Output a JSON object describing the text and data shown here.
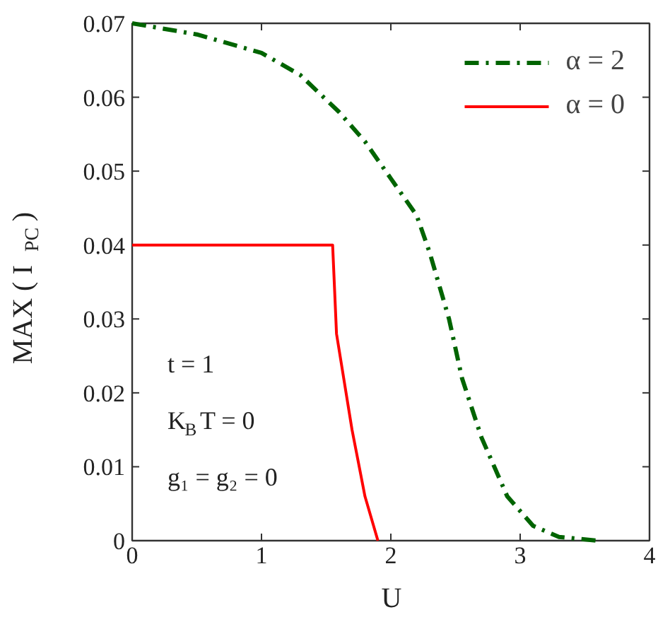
{
  "chart_data": {
    "type": "line",
    "xlabel": "U",
    "ylabel": "MAX ( I$_{PC}$ )",
    "xlim": [
      0,
      4
    ],
    "ylim": [
      0,
      0.07
    ],
    "xticks": [
      0,
      1,
      2,
      3,
      4
    ],
    "yticks": [
      0,
      0.01,
      0.02,
      0.03,
      0.04,
      0.05,
      0.06,
      0.07
    ],
    "grid": false,
    "legend": "top right",
    "marker": "none",
    "series": [
      {
        "name": "α = 2",
        "color": "#006400",
        "line_style": "dashdot",
        "x": [
          0,
          0.5,
          1,
          1.3,
          1.6,
          1.8,
          2.0,
          2.2,
          2.3,
          2.4,
          2.45,
          2.55,
          2.7,
          2.9,
          3.1,
          3.3,
          3.6
        ],
        "values": [
          0.07,
          0.0685,
          0.066,
          0.063,
          0.058,
          0.054,
          0.049,
          0.044,
          0.039,
          0.033,
          0.03,
          0.022,
          0.014,
          0.006,
          0.002,
          0.0005,
          0
        ]
      },
      {
        "name": "α = 0",
        "color": "#ff0000",
        "line_style": "solid",
        "x": [
          0,
          1.55,
          1.58,
          1.7,
          1.8,
          1.9
        ],
        "values": [
          0.04,
          0.04,
          0.028,
          0.015,
          0.006,
          0
        ]
      }
    ],
    "annotations": [
      "t = 1",
      "K$_{B}$T = 0",
      "g₁ = g₂ = 0"
    ]
  }
}
